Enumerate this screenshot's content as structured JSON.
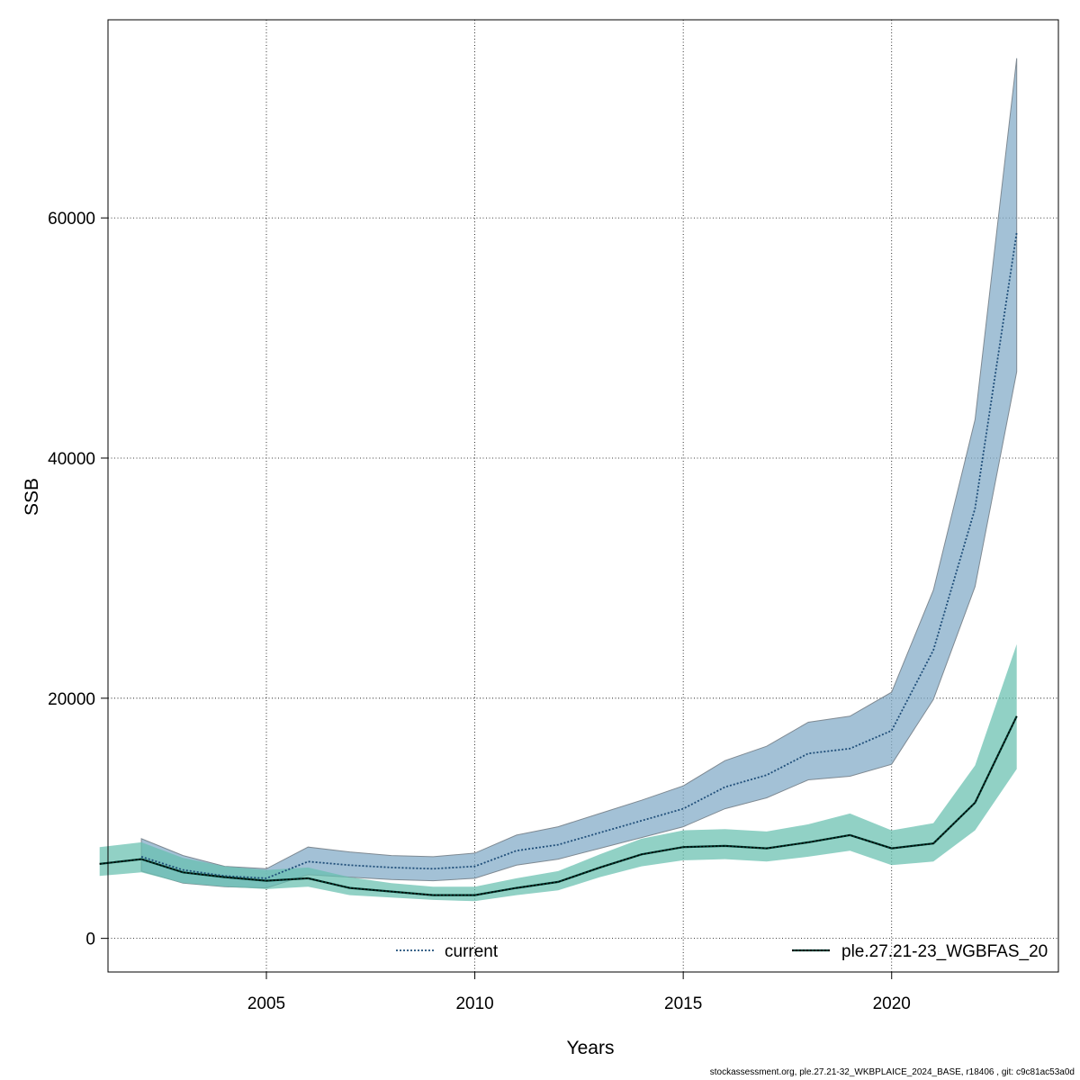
{
  "chart_data": {
    "type": "line",
    "xlabel": "Years",
    "ylabel": "SSB",
    "xlim": [
      2001.2,
      2024.0
    ],
    "ylim": [
      -2800,
      76500
    ],
    "x_ticks": [
      2005,
      2010,
      2015,
      2020
    ],
    "y_ticks": [
      0,
      20000,
      40000,
      60000
    ],
    "x_tick_labels": [
      "2005",
      "2010",
      "2015",
      "2020"
    ],
    "y_tick_labels": [
      "0",
      "20000",
      "40000",
      "60000"
    ],
    "grid": true,
    "legend_position": "bottom",
    "years": [
      2001,
      2002,
      2003,
      2004,
      2005,
      2006,
      2007,
      2008,
      2009,
      2010,
      2011,
      2012,
      2013,
      2014,
      2015,
      2016,
      2017,
      2018,
      2019,
      2020,
      2021,
      2022,
      2023
    ],
    "series": [
      {
        "name": "current",
        "line_color": "#1f4e79",
        "band_color": "#7fa9c6",
        "band_stroke": "#7f8a93",
        "values": [
          null,
          6800,
          5700,
          5200,
          5000,
          6400,
          6100,
          5900,
          5800,
          6000,
          7300,
          7800,
          8800,
          9800,
          10800,
          12600,
          13600,
          15400,
          15800,
          17300,
          24000,
          35800,
          58800
        ],
        "lower": [
          null,
          5600,
          4600,
          4300,
          4200,
          5300,
          5100,
          4900,
          4800,
          5000,
          6100,
          6600,
          7500,
          8400,
          9300,
          10800,
          11700,
          13200,
          13500,
          14500,
          19900,
          29300,
          47200
        ],
        "upper": [
          null,
          8300,
          6900,
          6000,
          5800,
          7600,
          7200,
          6900,
          6800,
          7100,
          8600,
          9300,
          10400,
          11500,
          12700,
          14800,
          16000,
          18000,
          18500,
          20500,
          29000,
          43200,
          73300
        ]
      },
      {
        "name": "ple.27.21-23_WGBFAS_20",
        "line_color": "#003b30",
        "band_color": "#66bfae",
        "band_stroke": "none",
        "values": [
          6200,
          6600,
          5500,
          5100,
          4800,
          5000,
          4200,
          3900,
          3600,
          3600,
          4200,
          4700,
          5900,
          7000,
          7600,
          7700,
          7500,
          8000,
          8600,
          7500,
          7900,
          11300,
          18500
        ],
        "lower": [
          5200,
          5500,
          4600,
          4300,
          4100,
          4300,
          3600,
          3400,
          3200,
          3100,
          3600,
          4000,
          5100,
          6000,
          6500,
          6600,
          6400,
          6800,
          7300,
          6100,
          6400,
          9000,
          14100
        ],
        "upper": [
          7600,
          8000,
          6700,
          6000,
          5700,
          5900,
          5100,
          4600,
          4300,
          4300,
          5000,
          5600,
          7000,
          8300,
          9000,
          9100,
          8900,
          9500,
          10400,
          9000,
          9600,
          14400,
          24500
        ]
      }
    ]
  },
  "footer_text": "stockassessment.org, ple.27.21-32_WKBPLAICE_2024_BASE, r18406 , git: c9c81ac53a0d"
}
